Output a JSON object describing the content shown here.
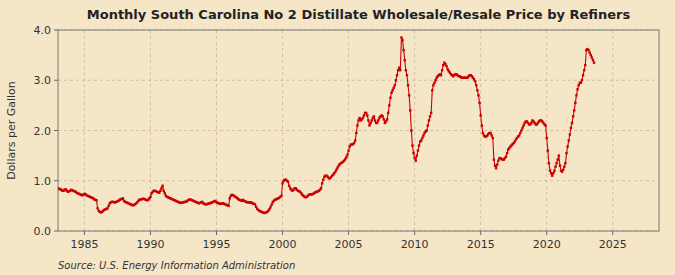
{
  "chart_data": {
    "type": "line",
    "title": "Monthly South Carolina No 2 Distillate Wholesale/Resale Price by Refiners",
    "y_label": "Dollars per Gallon",
    "source": "Source: U.S. Energy Information Administration",
    "color": "#cc0000",
    "marker": "square",
    "line_style": "solid",
    "grid": true,
    "xlim": [
      1983,
      2028.5
    ],
    "ylim": [
      0,
      4
    ],
    "xticks": [
      1985,
      1990,
      1995,
      2000,
      2005,
      2010,
      2015,
      2020,
      2025
    ],
    "yticks": [
      {
        "value": 0,
        "label": "0.0"
      },
      {
        "value": 1,
        "label": "1.0"
      },
      {
        "value": 2,
        "label": "2.0"
      },
      {
        "value": 3,
        "label": "3.0"
      },
      {
        "value": 4,
        "label": "4.0"
      }
    ],
    "x": [
      1983,
      1983.083333,
      1983.166666,
      1983.249999,
      1983.333332,
      1983.416665,
      1983.499998,
      1983.583331,
      1983.666664,
      1983.749997,
      1983.83333,
      1983.916663,
      1983.999996,
      1984.083329,
      1984.166662,
      1984.249995,
      1984.333328,
      1984.416661,
      1984.499994,
      1984.583327,
      1984.66666,
      1984.749993,
      1984.833326,
      1984.916659,
      1984.999992,
      1985.083325,
      1985.166658,
      1985.249991,
      1985.333324,
      1985.416657,
      1985.49999,
      1985.583323,
      1985.666656,
      1985.749989,
      1985.833322,
      1985.916655,
      1985.999988,
      1986.083321,
      1986.166654,
      1986.249987,
      1986.33332,
      1986.416653,
      1986.499986,
      1986.583319,
      1986.666652,
      1986.749985,
      1986.833318,
      1986.916651,
      1986.999984,
      1987.083317,
      1987.16665,
      1987.249983,
      1987.333316,
      1987.416649,
      1987.499982,
      1987.583315,
      1987.666648,
      1987.749981,
      1987.833314,
      1987.916647,
      1987.99998,
      1988.083313,
      1988.166646,
      1988.249979,
      1988.333312,
      1988.416645,
      1988.499978,
      1988.583311,
      1988.666644,
      1988.749977,
      1988.83331,
      1988.916643,
      1988.999976,
      1989.083309,
      1989.166642,
      1989.249975,
      1989.333308,
      1989.416641,
      1989.499974,
      1989.583307,
      1989.66664,
      1989.749973,
      1989.833306,
      1989.916639,
      1989.999972,
      1990.083305,
      1990.166638,
      1990.249971,
      1990.333304,
      1990.416637,
      1990.49997,
      1990.583303,
      1990.666636,
      1990.749969,
      1990.833302,
      1990.916635,
      1990.999968,
      1991.083301,
      1991.166634,
      1991.249967,
      1991.3333,
      1991.416633,
      1991.499966,
      1991.583299,
      1991.666632,
      1991.749965,
      1991.833298,
      1991.916631,
      1991.999964,
      1992.083297,
      1992.16663,
      1992.249963,
      1992.333296,
      1992.416629,
      1992.499962,
      1992.583295,
      1992.666628,
      1992.749961,
      1992.833294,
      1992.916627,
      1992.99996,
      1993.083293,
      1993.166626,
      1993.249959,
      1993.333292,
      1993.416625,
      1993.499958,
      1993.583291,
      1993.666624,
      1993.749957,
      1993.83329,
      1993.916623,
      1993.999956,
      1994.083289,
      1994.166622,
      1994.249955,
      1994.333288,
      1994.416621,
      1994.499954,
      1994.583287,
      1994.66662,
      1994.749953,
      1994.833286,
      1994.916619,
      1994.999952,
      1995.083285,
      1995.166618,
      1995.249951,
      1995.333284,
      1995.416617,
      1995.49995,
      1995.583283,
      1995.666616,
      1995.749949,
      1995.833282,
      1995.916615,
      1995.999948,
      1996.083281,
      1996.166614,
      1996.249947,
      1996.33328,
      1996.416613,
      1996.499946,
      1996.583279,
      1996.666612,
      1996.749945,
      1996.833278,
      1996.916611,
      1996.999944,
      1997.083277,
      1997.16661,
      1997.249943,
      1997.333276,
      1997.416609,
      1997.499942,
      1997.583275,
      1997.666608,
      1997.749941,
      1997.833274,
      1997.916607,
      1997.99994,
      1998.083273,
      1998.166606,
      1998.249939,
      1998.333272,
      1998.416605,
      1998.499938,
      1998.583271,
      1998.666604,
      1998.749937,
      1998.83327,
      1998.916603,
      1998.999936,
      1999.083269,
      1999.166602,
      1999.249935,
      1999.333268,
      1999.416601,
      1999.499934,
      1999.583267,
      1999.6666,
      1999.749933,
      1999.833266,
      1999.916599,
      1999.999932,
      2000.083265,
      2000.166598,
      2000.249931,
      2000.333264,
      2000.416597,
      2000.49993,
      2000.583263,
      2000.666596,
      2000.749929,
      2000.833262,
      2000.916595,
      2000.999928,
      2001.083261,
      2001.166594,
      2001.249927,
      2001.33326,
      2001.416593,
      2001.499926,
      2001.583259,
      2001.666592,
      2001.749925,
      2001.833258,
      2001.916591,
      2001.999924,
      2002.083257,
      2002.16659,
      2002.249923,
      2002.333256,
      2002.416589,
      2002.499922,
      2002.583255,
      2002.666588,
      2002.749921,
      2002.833254,
      2002.916587,
      2002.99992,
      2003.083253,
      2003.166586,
      2003.249919,
      2003.333252,
      2003.416585,
      2003.499918,
      2003.583251,
      2003.666584,
      2003.749917,
      2003.83325,
      2003.916583,
      2003.999916,
      2004.083249,
      2004.166582,
      2004.249915,
      2004.333248,
      2004.416581,
      2004.499914,
      2004.583247,
      2004.66658,
      2004.749913,
      2004.833246,
      2004.916579,
      2004.999912,
      2005.083245,
      2005.166578,
      2005.249911,
      2005.333244,
      2005.416577,
      2005.49991,
      2005.583243,
      2005.666576,
      2005.749909,
      2005.833242,
      2005.916575,
      2005.999908,
      2006.083241,
      2006.166574,
      2006.249907,
      2006.33324,
      2006.416573,
      2006.499906,
      2006.583239,
      2006.666572,
      2006.749905,
      2006.833238,
      2006.916571,
      2006.999904,
      2007.083237,
      2007.16657,
      2007.249903,
      2007.333236,
      2007.416569,
      2007.499902,
      2007.583235,
      2007.666568,
      2007.749901,
      2007.833234,
      2007.916567,
      2007.9999,
      2008.083233,
      2008.166566,
      2008.249899,
      2008.333232,
      2008.416565,
      2008.499898,
      2008.583231,
      2008.666564,
      2008.749897,
      2008.83323,
      2008.916563,
      2008.999896,
      2009.083229,
      2009.166562,
      2009.249895,
      2009.333228,
      2009.416561,
      2009.499894,
      2009.583227,
      2009.66656,
      2009.749893,
      2009.833226,
      2009.916559,
      2009.999892,
      2010.083225,
      2010.166558,
      2010.249891,
      2010.333224,
      2010.416557,
      2010.49989,
      2010.583223,
      2010.666556,
      2010.749889,
      2010.833222,
      2010.916555,
      2010.999888,
      2011.083221,
      2011.166554,
      2011.249887,
      2011.33322,
      2011.416553,
      2011.499886,
      2011.583219,
      2011.666552,
      2011.749885,
      2011.833218,
      2011.916551,
      2011.999884,
      2012.083217,
      2012.16655,
      2012.249883,
      2012.333216,
      2012.416549,
      2012.499882,
      2012.583215,
      2012.666548,
      2012.749881,
      2012.833214,
      2012.916547,
      2012.99988,
      2013.083213,
      2013.166546,
      2013.249879,
      2013.333212,
      2013.416545,
      2013.499878,
      2013.583211,
      2013.666544,
      2013.749877,
      2013.83321,
      2013.916543,
      2013.999876,
      2014.083209,
      2014.166542,
      2014.249875,
      2014.333208,
      2014.416541,
      2014.499874,
      2014.583207,
      2014.66654,
      2014.749873,
      2014.833206,
      2014.916539,
      2014.999872,
      2015.083205,
      2015.166538,
      2015.249871,
      2015.333204,
      2015.416537,
      2015.49987,
      2015.583203,
      2015.666536,
      2015.749869,
      2015.833202,
      2015.916535,
      2015.999868,
      2016.083201,
      2016.166534,
      2016.249867,
      2016.3332,
      2016.416533,
      2016.499866,
      2016.583199,
      2016.666532,
      2016.749865,
      2016.833198,
      2016.916531,
      2016.999864,
      2017.083197,
      2017.16653,
      2017.249863,
      2017.333196,
      2017.416529,
      2017.499862,
      2017.583195,
      2017.666528,
      2017.749861,
      2017.833194,
      2017.916527,
      2017.99986,
      2018.083193,
      2018.166526,
      2018.249859,
      2018.333192,
      2018.416525,
      2018.499858,
      2018.583191,
      2018.666524,
      2018.749857,
      2018.83319,
      2018.916523,
      2018.999856,
      2019.083189,
      2019.166522,
      2019.249855,
      2019.333188,
      2019.416521,
      2019.499854,
      2019.583187,
      2019.66652,
      2019.749853,
      2019.833186,
      2019.916519,
      2019.999852,
      2020.083185,
      2020.166518,
      2020.249851,
      2020.333184,
      2020.416517,
      2020.49985,
      2020.583183,
      2020.666516,
      2020.749849,
      2020.833182,
      2020.916515,
      2020.999848,
      2021.083181,
      2021.166514,
      2021.249847,
      2021.33318,
      2021.416513,
      2021.499846,
      2021.583179,
      2021.666512,
      2021.749845,
      2021.833178,
      2021.916511,
      2021.999844,
      2022.083177,
      2022.16651,
      2022.249843,
      2022.333176,
      2022.416509,
      2022.499842,
      2022.583175,
      2022.666508,
      2022.749841,
      2022.833174,
      2022.916507,
      2022.99984,
      2023.083173,
      2023.166506,
      2023.249839,
      2023.333172,
      2023.416505,
      2023.499838,
      2023.583171
    ],
    "values": [
      0.85,
      0.84,
      0.83,
      0.82,
      0.8,
      0.8,
      0.82,
      0.83,
      0.8,
      0.78,
      0.79,
      0.8,
      0.82,
      0.81,
      0.8,
      0.79,
      0.78,
      0.76,
      0.75,
      0.74,
      0.73,
      0.72,
      0.71,
      0.72,
      0.74,
      0.73,
      0.71,
      0.7,
      0.69,
      0.68,
      0.67,
      0.66,
      0.65,
      0.63,
      0.62,
      0.61,
      0.45,
      0.4,
      0.38,
      0.37,
      0.38,
      0.4,
      0.42,
      0.43,
      0.44,
      0.45,
      0.5,
      0.55,
      0.57,
      0.58,
      0.58,
      0.57,
      0.57,
      0.58,
      0.59,
      0.6,
      0.62,
      0.63,
      0.64,
      0.65,
      0.6,
      0.58,
      0.57,
      0.56,
      0.55,
      0.54,
      0.53,
      0.52,
      0.51,
      0.52,
      0.53,
      0.55,
      0.57,
      0.6,
      0.62,
      0.63,
      0.63,
      0.64,
      0.64,
      0.63,
      0.62,
      0.61,
      0.62,
      0.65,
      0.68,
      0.75,
      0.78,
      0.8,
      0.8,
      0.79,
      0.78,
      0.77,
      0.76,
      0.8,
      0.85,
      0.9,
      0.8,
      0.75,
      0.7,
      0.68,
      0.67,
      0.66,
      0.65,
      0.64,
      0.63,
      0.62,
      0.61,
      0.6,
      0.59,
      0.58,
      0.57,
      0.56,
      0.56,
      0.57,
      0.57,
      0.58,
      0.58,
      0.59,
      0.61,
      0.62,
      0.63,
      0.62,
      0.61,
      0.6,
      0.59,
      0.58,
      0.57,
      0.56,
      0.55,
      0.56,
      0.57,
      0.58,
      0.55,
      0.54,
      0.53,
      0.53,
      0.54,
      0.55,
      0.55,
      0.56,
      0.57,
      0.58,
      0.59,
      0.6,
      0.57,
      0.56,
      0.55,
      0.54,
      0.54,
      0.55,
      0.55,
      0.54,
      0.53,
      0.52,
      0.51,
      0.5,
      0.65,
      0.7,
      0.72,
      0.71,
      0.7,
      0.68,
      0.67,
      0.65,
      0.63,
      0.62,
      0.61,
      0.6,
      0.62,
      0.6,
      0.59,
      0.58,
      0.57,
      0.57,
      0.57,
      0.57,
      0.56,
      0.55,
      0.54,
      0.53,
      0.48,
      0.44,
      0.42,
      0.4,
      0.39,
      0.38,
      0.37,
      0.36,
      0.36,
      0.37,
      0.38,
      0.4,
      0.43,
      0.47,
      0.52,
      0.57,
      0.6,
      0.62,
      0.63,
      0.64,
      0.65,
      0.66,
      0.68,
      0.7,
      0.95,
      1.0,
      1.02,
      1.02,
      1.0,
      0.98,
      0.9,
      0.85,
      0.82,
      0.8,
      0.82,
      0.85,
      0.85,
      0.82,
      0.8,
      0.79,
      0.78,
      0.75,
      0.72,
      0.7,
      0.68,
      0.67,
      0.68,
      0.7,
      0.72,
      0.73,
      0.73,
      0.73,
      0.74,
      0.76,
      0.77,
      0.78,
      0.79,
      0.8,
      0.82,
      0.85,
      0.95,
      1.02,
      1.08,
      1.1,
      1.1,
      1.08,
      1.05,
      1.05,
      1.07,
      1.1,
      1.12,
      1.15,
      1.18,
      1.22,
      1.26,
      1.3,
      1.33,
      1.35,
      1.36,
      1.38,
      1.4,
      1.43,
      1.47,
      1.52,
      1.6,
      1.68,
      1.72,
      1.72,
      1.73,
      1.75,
      1.8,
      1.95,
      2.1,
      2.2,
      2.25,
      2.2,
      2.22,
      2.25,
      2.3,
      2.35,
      2.35,
      2.3,
      2.2,
      2.1,
      2.15,
      2.2,
      2.25,
      2.28,
      2.2,
      2.15,
      2.15,
      2.2,
      2.25,
      2.28,
      2.3,
      2.28,
      2.22,
      2.15,
      2.18,
      2.22,
      2.35,
      2.5,
      2.65,
      2.75,
      2.8,
      2.85,
      2.9,
      3.0,
      3.1,
      3.2,
      3.25,
      3.2,
      3.85,
      3.8,
      3.6,
      3.4,
      3.2,
      3.1,
      2.9,
      2.7,
      2.4,
      2.0,
      1.7,
      1.55,
      1.45,
      1.4,
      1.5,
      1.6,
      1.7,
      1.78,
      1.8,
      1.85,
      1.9,
      1.95,
      1.98,
      2.0,
      2.1,
      2.2,
      2.28,
      2.35,
      2.8,
      2.9,
      2.95,
      3.0,
      3.05,
      3.08,
      3.1,
      3.12,
      3.1,
      3.2,
      3.3,
      3.35,
      3.32,
      3.28,
      3.22,
      3.18,
      3.15,
      3.12,
      3.1,
      3.08,
      3.1,
      3.12,
      3.12,
      3.1,
      3.08,
      3.08,
      3.06,
      3.05,
      3.05,
      3.05,
      3.05,
      3.05,
      3.05,
      3.08,
      3.1,
      3.1,
      3.08,
      3.05,
      3.02,
      2.98,
      2.9,
      2.8,
      2.7,
      2.55,
      2.3,
      2.1,
      1.95,
      1.9,
      1.88,
      1.88,
      1.9,
      1.93,
      1.95,
      1.95,
      1.9,
      1.85,
      1.42,
      1.3,
      1.25,
      1.32,
      1.4,
      1.45,
      1.45,
      1.43,
      1.42,
      1.42,
      1.45,
      1.48,
      1.55,
      1.62,
      1.65,
      1.68,
      1.7,
      1.73,
      1.75,
      1.78,
      1.82,
      1.85,
      1.88,
      1.9,
      1.95,
      2.0,
      2.05,
      2.1,
      2.15,
      2.18,
      2.18,
      2.15,
      2.12,
      2.12,
      2.15,
      2.2,
      2.18,
      2.15,
      2.12,
      2.12,
      2.15,
      2.18,
      2.2,
      2.2,
      2.18,
      2.15,
      2.12,
      2.1,
      1.85,
      1.6,
      1.35,
      1.2,
      1.15,
      1.1,
      1.15,
      1.2,
      1.28,
      1.35,
      1.42,
      1.5,
      1.3,
      1.2,
      1.18,
      1.22,
      1.28,
      1.35,
      1.55,
      1.68,
      1.8,
      1.92,
      2.05,
      2.15,
      2.28,
      2.4,
      2.55,
      2.7,
      2.82,
      2.9,
      2.95,
      2.95,
      3.0,
      3.1,
      3.2,
      3.3,
      3.6,
      3.62,
      3.6,
      3.55,
      3.5,
      3.45,
      3.4,
      3.35
    ]
  }
}
